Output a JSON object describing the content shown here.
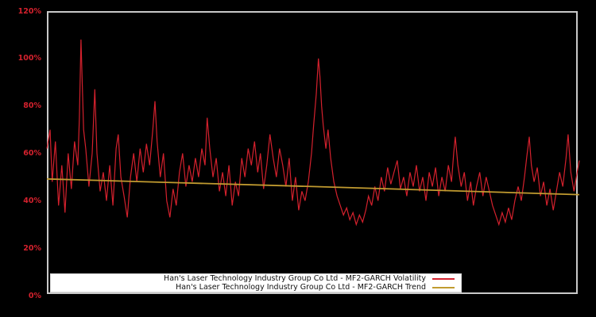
{
  "figure": {
    "background_color": "#000000",
    "plot_background_color": "#000000",
    "frame_color": "#c9c9c9"
  },
  "axes": {
    "tick_label_color": "#d4212d",
    "y_ticks": [
      {
        "label": "0%",
        "value": 0
      },
      {
        "label": "20%",
        "value": 20
      },
      {
        "label": "40%",
        "value": 40
      },
      {
        "label": "60%",
        "value": 60
      },
      {
        "label": "80%",
        "value": 80
      },
      {
        "label": "100%",
        "value": 100
      },
      {
        "label": "120%",
        "value": 120
      }
    ]
  },
  "legend": {
    "background": "#ffffff",
    "items": [
      {
        "label": "Han's Laser Technology Industry Group Co Ltd - MF2-GARCH Volatility",
        "color": "#d4212d"
      },
      {
        "label": "Han's Laser Technology Industry Group Co Ltd - MF2-GARCH Trend",
        "color": "#c19b30"
      }
    ]
  },
  "chart_data": {
    "type": "line",
    "title": "",
    "xlabel": "",
    "ylabel": "",
    "ylim": [
      0,
      120
    ],
    "y_unit": "%",
    "x_tick_labels": [],
    "grid": false,
    "legend_position": "lower-left",
    "series": [
      {
        "id": "volatility",
        "name": "Han's Laser Technology Industry Group Co Ltd - MF2-GARCH Volatility",
        "color": "#d4212d",
        "width": 1.2,
        "points": [
          [
            0.0,
            62
          ],
          [
            0.006,
            70
          ],
          [
            0.01,
            48
          ],
          [
            0.016,
            65
          ],
          [
            0.022,
            38
          ],
          [
            0.028,
            55
          ],
          [
            0.034,
            35
          ],
          [
            0.04,
            60
          ],
          [
            0.046,
            45
          ],
          [
            0.052,
            65
          ],
          [
            0.058,
            55
          ],
          [
            0.061,
            75
          ],
          [
            0.064,
            108
          ],
          [
            0.069,
            70
          ],
          [
            0.073,
            62
          ],
          [
            0.079,
            46
          ],
          [
            0.085,
            60
          ],
          [
            0.09,
            87
          ],
          [
            0.094,
            60
          ],
          [
            0.1,
            44
          ],
          [
            0.106,
            52
          ],
          [
            0.112,
            40
          ],
          [
            0.118,
            55
          ],
          [
            0.124,
            38
          ],
          [
            0.13,
            62
          ],
          [
            0.134,
            68
          ],
          [
            0.139,
            50
          ],
          [
            0.145,
            42
          ],
          [
            0.151,
            33
          ],
          [
            0.157,
            50
          ],
          [
            0.163,
            60
          ],
          [
            0.169,
            48
          ],
          [
            0.175,
            62
          ],
          [
            0.181,
            52
          ],
          [
            0.187,
            64
          ],
          [
            0.193,
            55
          ],
          [
            0.199,
            70
          ],
          [
            0.203,
            82
          ],
          [
            0.207,
            65
          ],
          [
            0.213,
            50
          ],
          [
            0.219,
            60
          ],
          [
            0.225,
            40
          ],
          [
            0.231,
            33
          ],
          [
            0.237,
            45
          ],
          [
            0.243,
            38
          ],
          [
            0.249,
            52
          ],
          [
            0.255,
            60
          ],
          [
            0.261,
            46
          ],
          [
            0.267,
            55
          ],
          [
            0.273,
            48
          ],
          [
            0.279,
            58
          ],
          [
            0.285,
            50
          ],
          [
            0.291,
            62
          ],
          [
            0.297,
            55
          ],
          [
            0.301,
            75
          ],
          [
            0.306,
            62
          ],
          [
            0.312,
            50
          ],
          [
            0.318,
            58
          ],
          [
            0.324,
            44
          ],
          [
            0.33,
            52
          ],
          [
            0.336,
            42
          ],
          [
            0.342,
            55
          ],
          [
            0.348,
            38
          ],
          [
            0.354,
            48
          ],
          [
            0.36,
            42
          ],
          [
            0.366,
            58
          ],
          [
            0.372,
            50
          ],
          [
            0.378,
            62
          ],
          [
            0.384,
            55
          ],
          [
            0.39,
            65
          ],
          [
            0.396,
            52
          ],
          [
            0.401,
            60
          ],
          [
            0.407,
            45
          ],
          [
            0.413,
            55
          ],
          [
            0.419,
            68
          ],
          [
            0.425,
            58
          ],
          [
            0.431,
            50
          ],
          [
            0.437,
            62
          ],
          [
            0.443,
            55
          ],
          [
            0.449,
            46
          ],
          [
            0.455,
            58
          ],
          [
            0.461,
            40
          ],
          [
            0.467,
            50
          ],
          [
            0.473,
            36
          ],
          [
            0.479,
            44
          ],
          [
            0.485,
            40
          ],
          [
            0.491,
            48
          ],
          [
            0.497,
            60
          ],
          [
            0.501,
            72
          ],
          [
            0.506,
            85
          ],
          [
            0.51,
            100
          ],
          [
            0.513,
            92
          ],
          [
            0.516,
            80
          ],
          [
            0.519,
            72
          ],
          [
            0.524,
            62
          ],
          [
            0.528,
            70
          ],
          [
            0.533,
            58
          ],
          [
            0.539,
            48
          ],
          [
            0.545,
            42
          ],
          [
            0.551,
            38
          ],
          [
            0.557,
            34
          ],
          [
            0.563,
            37
          ],
          [
            0.569,
            32
          ],
          [
            0.575,
            35
          ],
          [
            0.581,
            30
          ],
          [
            0.587,
            34
          ],
          [
            0.593,
            31
          ],
          [
            0.599,
            36
          ],
          [
            0.604,
            42
          ],
          [
            0.61,
            38
          ],
          [
            0.616,
            46
          ],
          [
            0.622,
            40
          ],
          [
            0.628,
            50
          ],
          [
            0.634,
            44
          ],
          [
            0.64,
            54
          ],
          [
            0.646,
            47
          ],
          [
            0.652,
            52
          ],
          [
            0.658,
            57
          ],
          [
            0.664,
            45
          ],
          [
            0.67,
            50
          ],
          [
            0.676,
            42
          ],
          [
            0.682,
            52
          ],
          [
            0.688,
            46
          ],
          [
            0.694,
            55
          ],
          [
            0.7,
            44
          ],
          [
            0.706,
            50
          ],
          [
            0.712,
            40
          ],
          [
            0.718,
            52
          ],
          [
            0.724,
            46
          ],
          [
            0.73,
            54
          ],
          [
            0.736,
            42
          ],
          [
            0.742,
            50
          ],
          [
            0.748,
            44
          ],
          [
            0.754,
            55
          ],
          [
            0.76,
            48
          ],
          [
            0.764,
            60
          ],
          [
            0.767,
            67
          ],
          [
            0.772,
            55
          ],
          [
            0.778,
            46
          ],
          [
            0.784,
            52
          ],
          [
            0.79,
            40
          ],
          [
            0.796,
            48
          ],
          [
            0.801,
            38
          ],
          [
            0.807,
            46
          ],
          [
            0.813,
            52
          ],
          [
            0.819,
            42
          ],
          [
            0.825,
            50
          ],
          [
            0.831,
            44
          ],
          [
            0.837,
            38
          ],
          [
            0.843,
            34
          ],
          [
            0.849,
            30
          ],
          [
            0.855,
            35
          ],
          [
            0.861,
            31
          ],
          [
            0.867,
            37
          ],
          [
            0.873,
            32
          ],
          [
            0.879,
            40
          ],
          [
            0.885,
            46
          ],
          [
            0.891,
            40
          ],
          [
            0.897,
            50
          ],
          [
            0.901,
            58
          ],
          [
            0.906,
            67
          ],
          [
            0.91,
            55
          ],
          [
            0.915,
            48
          ],
          [
            0.921,
            54
          ],
          [
            0.927,
            42
          ],
          [
            0.933,
            48
          ],
          [
            0.939,
            38
          ],
          [
            0.945,
            45
          ],
          [
            0.951,
            36
          ],
          [
            0.957,
            44
          ],
          [
            0.963,
            52
          ],
          [
            0.969,
            46
          ],
          [
            0.975,
            58
          ],
          [
            0.979,
            68
          ],
          [
            0.984,
            52
          ],
          [
            0.99,
            44
          ],
          [
            0.996,
            52
          ],
          [
            1.0,
            57
          ]
        ]
      },
      {
        "id": "trend",
        "name": "Han's Laser Technology Industry Group Co Ltd - MF2-GARCH Trend",
        "color": "#c19b30",
        "width": 1.8,
        "points": [
          [
            0.0,
            49.2
          ],
          [
            0.25,
            47.6
          ],
          [
            0.5,
            46.0
          ],
          [
            0.75,
            44.3
          ],
          [
            1.0,
            42.6
          ]
        ]
      }
    ]
  }
}
